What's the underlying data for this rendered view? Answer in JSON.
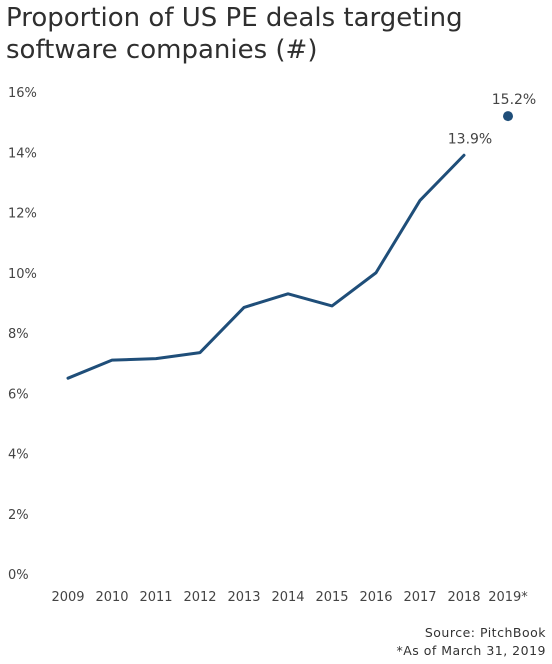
{
  "title_lines": [
    "Proportion of US PE deals targeting",
    "software companies (#)"
  ],
  "footer": {
    "source": "Source: PitchBook",
    "note": "*As of March 31, 2019"
  },
  "colors": {
    "line": "#1f4e79",
    "text": "#444444"
  },
  "chart_data": {
    "type": "line",
    "title": "Proportion of US PE deals targeting software companies (#)",
    "xlabel": "",
    "ylabel": "",
    "categories": [
      "2009",
      "2010",
      "2011",
      "2012",
      "2013",
      "2014",
      "2015",
      "2016",
      "2017",
      "2018",
      "2019*"
    ],
    "yticks": [
      "0%",
      "2%",
      "4%",
      "6%",
      "8%",
      "10%",
      "12%",
      "14%",
      "16%"
    ],
    "ylim": [
      0,
      16
    ],
    "grid": false,
    "series": [
      {
        "values": [
          6.5,
          7.1,
          7.15,
          7.35,
          8.85,
          9.3,
          8.9,
          10.0,
          12.4,
          13.9,
          null
        ]
      },
      {
        "values": [
          null,
          null,
          null,
          null,
          null,
          null,
          null,
          null,
          null,
          null,
          15.2
        ],
        "marker": "dot"
      }
    ],
    "data_labels": [
      {
        "category": "2018",
        "text": "13.9%"
      },
      {
        "category": "2019*",
        "text": "15.2%"
      }
    ]
  }
}
